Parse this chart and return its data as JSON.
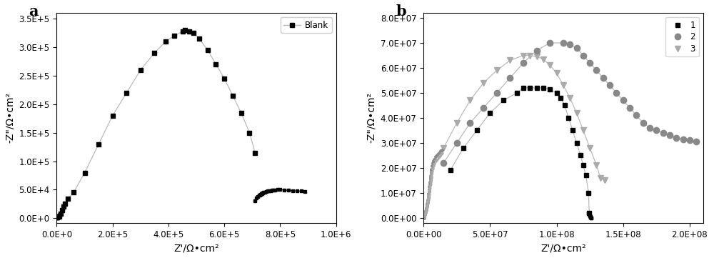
{
  "panel_a": {
    "label": "Blank",
    "color": "#000000",
    "marker": "s",
    "markersize": 5,
    "linecolor": "#aaaaaa",
    "x_main": [
      10000,
      15000,
      20000,
      25000,
      30000,
      40000,
      60000,
      100000,
      150000,
      200000,
      250000,
      300000,
      350000,
      390000,
      420000,
      450000,
      460000,
      475000,
      490000,
      510000,
      540000,
      570000,
      600000,
      630000,
      660000,
      690000,
      710000
    ],
    "y_main": [
      3000,
      8000,
      14000,
      20000,
      26000,
      34000,
      45000,
      80000,
      130000,
      180000,
      220000,
      260000,
      290000,
      310000,
      320000,
      327000,
      330000,
      328000,
      325000,
      315000,
      295000,
      270000,
      245000,
      215000,
      185000,
      150000,
      115000
    ],
    "x_low_dense": [
      1000,
      2000,
      3000,
      4000,
      5000,
      5500,
      6000,
      6500,
      7000,
      7200,
      7400,
      7600,
      7800,
      8000,
      8200,
      8400,
      8600,
      8800,
      9000,
      9200,
      9400,
      9600,
      9800,
      10000
    ],
    "y_low_dense": [
      0,
      200,
      500,
      800,
      1200,
      1500,
      2000,
      2500,
      3000,
      3200,
      3400,
      3600,
      3800,
      4000,
      4200,
      4400,
      4600,
      4800,
      5000,
      5200,
      5400,
      5600,
      5800,
      6000
    ],
    "x_tail": [
      710000,
      715000,
      720000,
      725000,
      728000,
      730000,
      732000,
      734000,
      736000,
      738000,
      740000,
      745000,
      750000,
      755000,
      760000,
      765000,
      770000,
      775000,
      780000,
      790000,
      800000,
      815000,
      830000,
      845000,
      860000,
      875000,
      888000
    ],
    "y_tail": [
      30000,
      35000,
      38000,
      40000,
      41000,
      42000,
      43000,
      43500,
      44000,
      44500,
      45000,
      46000,
      47000,
      47500,
      48000,
      48500,
      49000,
      49300,
      49600,
      50000,
      50000,
      49500,
      49000,
      48500,
      48000,
      47500,
      47000
    ],
    "xlabel": "Z'/Ω•cm²",
    "ylabel": "-Z\"/Ω•cm²",
    "xlim": [
      0,
      1000000.0
    ],
    "ylim": [
      -8000,
      360000.0
    ],
    "xticks": [
      0,
      200000.0,
      400000.0,
      600000.0,
      800000.0,
      1000000.0
    ],
    "yticks": [
      0,
      50000.0,
      100000.0,
      150000.0,
      200000.0,
      250000.0,
      300000.0,
      350000.0
    ],
    "panel_label": "a"
  },
  "panel_b": {
    "series1": {
      "label": "1",
      "color": "#000000",
      "marker": "s",
      "markersize": 5,
      "x_arc": [
        20000000.0,
        30000000.0,
        40000000.0,
        50000000.0,
        60000000.0,
        70000000.0,
        75000000.0,
        80000000.0,
        85000000.0,
        90000000.0,
        95000000.0,
        100000000.0,
        103000000.0,
        106000000.0,
        109000000.0,
        112000000.0,
        115000000.0,
        118000000.0,
        120000000.0,
        122000000.0,
        124000000.0,
        124500000.0
      ],
      "y_arc": [
        19000000.0,
        28000000.0,
        35000000.0,
        42000000.0,
        47000000.0,
        50000000.0,
        52000000.0,
        52000000.0,
        52000000.0,
        52000000.0,
        51500000.0,
        50000000.0,
        48000000.0,
        45000000.0,
        40000000.0,
        35000000.0,
        30000000.0,
        25000000.0,
        21000000.0,
        17000000.0,
        10000000.0,
        2000000.0
      ],
      "x_low": [
        124000000.0,
        124500000.0,
        124800000.0,
        125000000.0,
        125200000.0,
        125400000.0,
        125600000.0,
        125700000.0,
        125800000.0,
        125900000.0
      ],
      "y_low": [
        2000000.0,
        1500000.0,
        1200000.0,
        800000.0,
        500000.0,
        300000.0,
        200000.0,
        100000.0,
        50000.0,
        10000.0
      ]
    },
    "series2": {
      "label": "2",
      "color": "#888888",
      "marker": "o",
      "markersize": 6,
      "x_arc": [
        15000000.0,
        25000000.0,
        35000000.0,
        45000000.0,
        55000000.0,
        65000000.0,
        75000000.0,
        85000000.0,
        95000000.0,
        105000000.0,
        110000000.0,
        115000000.0,
        120000000.0,
        125000000.0,
        130000000.0,
        135000000.0,
        140000000.0,
        145000000.0,
        150000000.0,
        155000000.0,
        160000000.0,
        165000000.0,
        170000000.0,
        175000000.0,
        180000000.0,
        185000000.0,
        190000000.0,
        195000000.0,
        200000000.0,
        205000000.0
      ],
      "y_arc": [
        22000000.0,
        30000000.0,
        38000000.0,
        44000000.0,
        50000000.0,
        56000000.0,
        62000000.0,
        67000000.0,
        70000000.0,
        70000000.0,
        69500000.0,
        68000000.0,
        65000000.0,
        62000000.0,
        59000000.0,
        56000000.0,
        53000000.0,
        50000000.0,
        47000000.0,
        44000000.0,
        41000000.0,
        38000000.0,
        36000000.0,
        35000000.0,
        34000000.0,
        33000000.0,
        32000000.0,
        31500000.0,
        31000000.0,
        30500000.0
      ]
    },
    "series3": {
      "label": "3",
      "color": "#aaaaaa",
      "marker": "v",
      "markersize": 6,
      "x_arc": [
        15000000.0,
        25000000.0,
        35000000.0,
        45000000.0,
        55000000.0,
        65000000.0,
        75000000.0,
        80000000.0,
        85000000.0,
        90000000.0,
        95000000.0,
        100000000.0,
        105000000.0,
        110000000.0,
        115000000.0,
        120000000.0,
        125000000.0,
        130000000.0,
        133000000.0,
        136000000.0
      ],
      "y_arc": [
        28000000.0,
        38000000.0,
        47000000.0,
        54000000.0,
        59000000.0,
        63000000.0,
        65000000.0,
        65000000.0,
        64500000.0,
        63500000.0,
        61000000.0,
        58000000.0,
        53000000.0,
        48000000.0,
        42000000.0,
        35000000.0,
        28000000.0,
        21000000.0,
        16000000.0,
        15000000.0
      ]
    },
    "x_dense_23": [
      200000,
      400000,
      600000,
      800000,
      1000000,
      1200000,
      1400000,
      1600000,
      1800000,
      2000000,
      2200000,
      2400000,
      2600000,
      2800000,
      3000000,
      3200000,
      3400000,
      3600000,
      3800000,
      4000000,
      4200000,
      4400000,
      4600000,
      4800000,
      5000000,
      5200000,
      5400000,
      5600000,
      5800000,
      6000000,
      6500000,
      7000000,
      7500000,
      8000000,
      9000000,
      10000000.0,
      11000000.0,
      12000000.0,
      13000000.0,
      14000000.0
    ],
    "y_dense_2": [
      0,
      500000,
      900000,
      1300000,
      1700000,
      2100000,
      2500000,
      2800000,
      3200000,
      3600000,
      4000000,
      4500000,
      5000000,
      5600000,
      6300000,
      7100000,
      7900000,
      8800000,
      9700000,
      10600000.0,
      11500000.0,
      12400000.0,
      13300000.0,
      14200000.0,
      15100000.0,
      16000000.0,
      16900000.0,
      17800000.0,
      18600000.0,
      19400000.0,
      20800000.0,
      22000000.0,
      22800000.0,
      23500000.0,
      24500000.0,
      25200000.0,
      25800000.0,
      26300000.0,
      26800000.0,
      27200000.0
    ],
    "y_dense_3": [
      0,
      400000,
      750000,
      1100000,
      1450000,
      1800000,
      2150000,
      2450000,
      2800000,
      3150000,
      3500000,
      3900000,
      4300000,
      4800000,
      5400000,
      6100000,
      6800000,
      7600000,
      8400000,
      9200000,
      10000000.0,
      10800000.0,
      11600000.0,
      12400000.0,
      13200000.0,
      14000000.0,
      14800000.0,
      15600000.0,
      16300000.0,
      17000000.0,
      18300000.0,
      19500000.0,
      20500000.0,
      21300000.0,
      22400000.0,
      23200000.0,
      24000000.0,
      24600000.0,
      25200000.0,
      25800000.0
    ],
    "xlabel": "Z'/Ω•cm²",
    "ylabel": "-Z\"/Ω•cm²",
    "xlim": [
      0,
      210000000.0
    ],
    "ylim": [
      -2000000.0,
      82000000.0
    ],
    "xticks": [
      0,
      50000000.0,
      100000000.0,
      150000000.0,
      200000000.0
    ],
    "yticks": [
      0,
      10000000.0,
      20000000.0,
      30000000.0,
      40000000.0,
      50000000.0,
      60000000.0,
      70000000.0,
      80000000.0
    ],
    "panel_label": "b"
  }
}
